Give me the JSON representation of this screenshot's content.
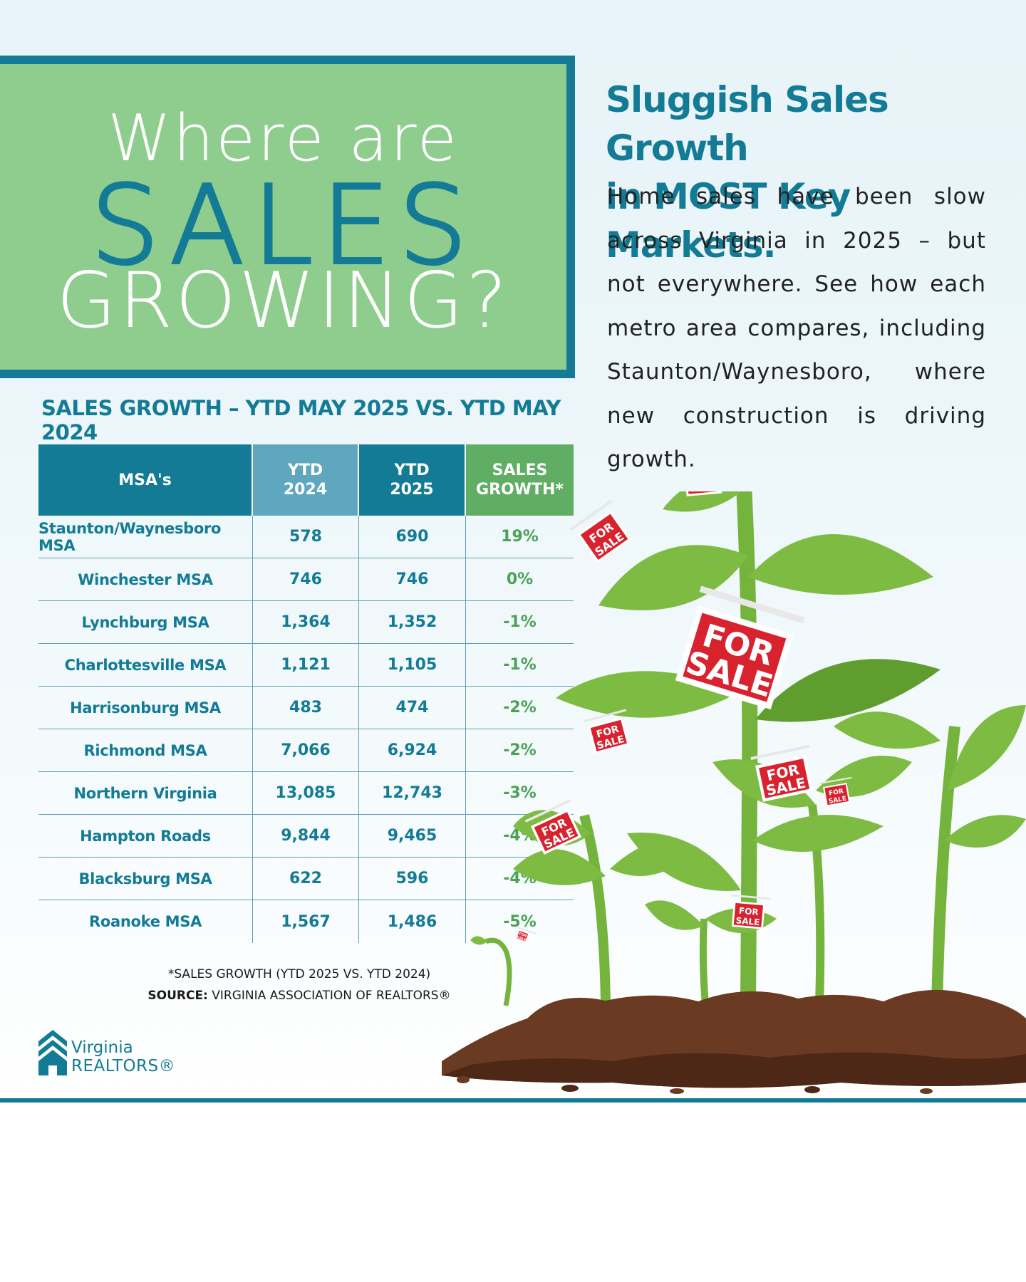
{
  "hero": {
    "line1": "Where are",
    "line2": "SALES",
    "line3": "GROWING?"
  },
  "headline": {
    "line1": "Sluggish Sales Growth",
    "line2": "in MOST Key Markets."
  },
  "intro": "Home sales have been slow across Virginia in 2025 – but not everywhere. See how each metro area compares, including Staunton/Waynesboro, where new construction is driving growth.",
  "table": {
    "title": "SALES GROWTH – YTD MAY 2025 VS. YTD MAY 2024",
    "headers": {
      "msa": "MSA's",
      "ytd2024_l1": "YTD",
      "ytd2024_l2": "2024",
      "ytd2025_l1": "YTD",
      "ytd2025_l2": "2025",
      "growth_l1": "SALES",
      "growth_l2": "GROWTH*"
    },
    "rows": [
      {
        "msa": "Staunton/Waynesboro MSA",
        "ytd2024": "578",
        "ytd2025": "690",
        "growth": "19%"
      },
      {
        "msa": "Winchester MSA",
        "ytd2024": "746",
        "ytd2025": "746",
        "growth": "0%"
      },
      {
        "msa": "Lynchburg MSA",
        "ytd2024": "1,364",
        "ytd2025": "1,352",
        "growth": "-1%"
      },
      {
        "msa": "Charlottesville MSA",
        "ytd2024": "1,121",
        "ytd2025": "1,105",
        "growth": "-1%"
      },
      {
        "msa": "Harrisonburg MSA",
        "ytd2024": "483",
        "ytd2025": "474",
        "growth": "-2%"
      },
      {
        "msa": "Richmond MSA",
        "ytd2024": "7,066",
        "ytd2025": "6,924",
        "growth": "-2%"
      },
      {
        "msa": "Northern Virginia",
        "ytd2024": "13,085",
        "ytd2025": "12,743",
        "growth": "-3%"
      },
      {
        "msa": "Hampton Roads",
        "ytd2024": "9,844",
        "ytd2025": "9,465",
        "growth": "-4%"
      },
      {
        "msa": "Blacksburg MSA",
        "ytd2024": "622",
        "ytd2025": "596",
        "growth": "-4%"
      },
      {
        "msa": "Roanoke MSA",
        "ytd2024": "1,567",
        "ytd2025": "1,486",
        "growth": "-5%"
      }
    ]
  },
  "footnote": {
    "line1": "*SALES GROWTH (YTD 2025 VS. YTD 2024)",
    "source_label": "SOURCE:",
    "source_text": "VIRGINIA ASSOCIATION OF REALTORS®"
  },
  "logo": {
    "word1": "Virginia",
    "word2": "REALTORS®",
    "icon": "house-chevron-icon"
  },
  "illustration": {
    "sign_line1": "FOR",
    "sign_line2": "SALE",
    "colors": {
      "leaf": "#7dbb42",
      "leaf_dark": "#5f9e2e",
      "stem": "#74b43c",
      "soil": "#6b3a22",
      "soil_dark": "#4e2816",
      "sign_red": "#d8232f",
      "sign_post": "#e8e8e8"
    }
  },
  "colors": {
    "teal": "#137b95",
    "teal_light": "#5ea7bf",
    "green_header": "#5fae63",
    "green_hero": "#8fcd8f",
    "green_text": "#4aa255"
  }
}
